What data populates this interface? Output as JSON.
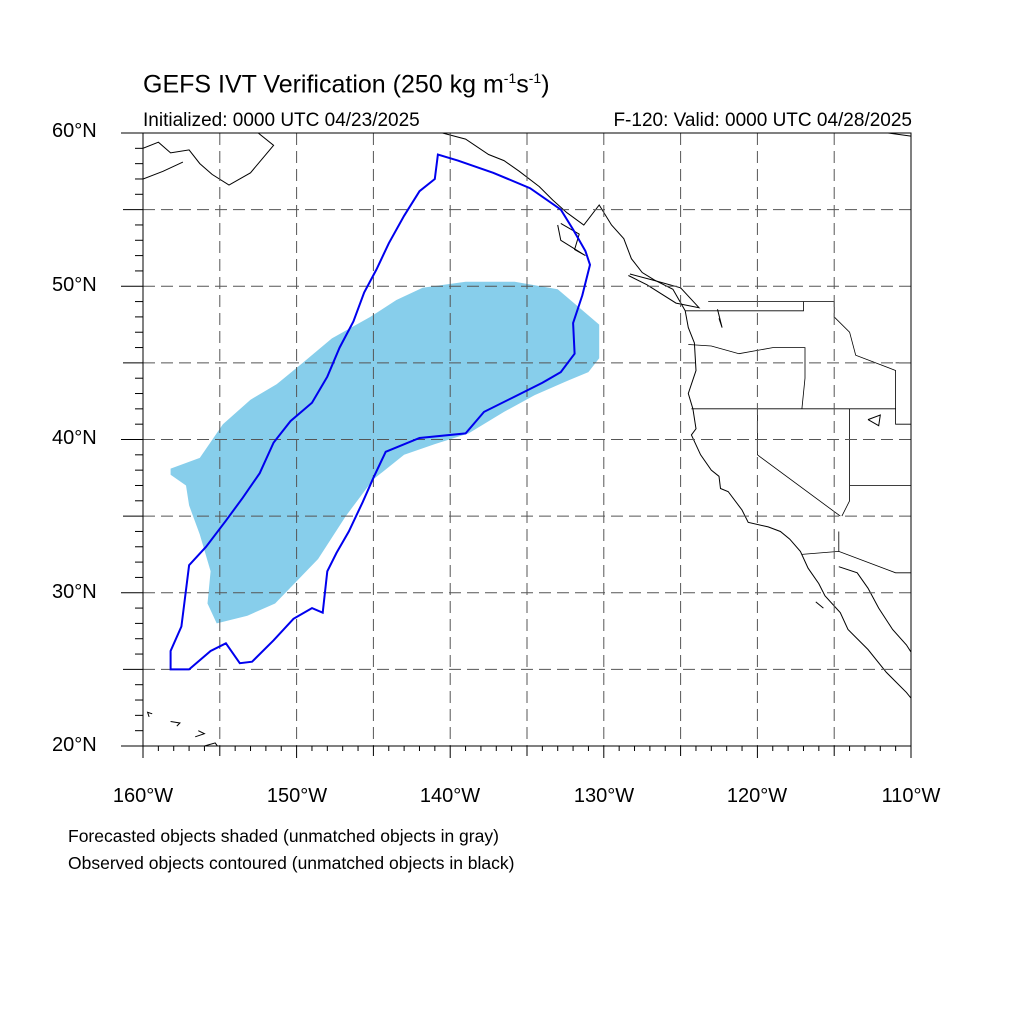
{
  "title": {
    "text": "GEFS IVT Verification (250 kg m",
    "exp1": "-1",
    "mid": "s",
    "exp2": "-1",
    "end": ")"
  },
  "subtitle": {
    "left": "Initialized: 0000 UTC 04/23/2025",
    "right": "F-120: Valid: 0000 UTC 04/28/2025"
  },
  "axes": {
    "lat_labels": [
      "60°N",
      "50°N",
      "40°N",
      "30°N",
      "20°N"
    ],
    "lon_labels": [
      "160°W",
      "150°W",
      "140°W",
      "130°W",
      "120°W",
      "110°W"
    ],
    "lat_range": [
      20,
      60
    ],
    "lon_range": [
      -160,
      -110
    ],
    "grid": true
  },
  "legend_notes": [
    "Forecasted objects shaded (unmatched objects in gray)",
    "Observed objects contoured (unmatched objects in black)"
  ],
  "colors": {
    "forecast_fill": "#87ceeb",
    "observed_contour": "#0000ee",
    "coastline": "#000000",
    "grid": "#555555"
  },
  "forecast_object_outline": [
    [
      -158.2,
      38.1
    ],
    [
      -156.3,
      38.8
    ],
    [
      -154.8,
      41.0
    ],
    [
      -153.0,
      42.6
    ],
    [
      -151.3,
      43.6
    ],
    [
      -149.6,
      45.0
    ],
    [
      -147.7,
      46.6
    ],
    [
      -145.2,
      48.0
    ],
    [
      -143.5,
      49.1
    ],
    [
      -141.8,
      49.9
    ],
    [
      -139.0,
      50.3
    ],
    [
      -135.8,
      50.3
    ],
    [
      -133.0,
      49.8
    ],
    [
      -131.7,
      48.7
    ],
    [
      -130.3,
      47.5
    ],
    [
      -130.3,
      45.3
    ],
    [
      -131.0,
      44.4
    ],
    [
      -132.2,
      43.9
    ],
    [
      -134.5,
      42.9
    ],
    [
      -136.5,
      41.8
    ],
    [
      -138.8,
      40.4
    ],
    [
      -141.0,
      39.7
    ],
    [
      -143.0,
      39.0
    ],
    [
      -145.0,
      37.4
    ],
    [
      -146.8,
      35.0
    ],
    [
      -148.6,
      32.2
    ],
    [
      -151.4,
      29.3
    ],
    [
      -153.2,
      28.5
    ],
    [
      -155.2,
      28.0
    ],
    [
      -155.8,
      29.3
    ],
    [
      -155.6,
      31.4
    ],
    [
      -156.3,
      33.8
    ],
    [
      -157.0,
      35.7
    ],
    [
      -157.2,
      37.0
    ],
    [
      -158.2,
      37.7
    ]
  ],
  "observed_object_outline": [
    [
      -158.2,
      25.0
    ],
    [
      -157.0,
      25.0
    ],
    [
      -155.6,
      26.2
    ],
    [
      -154.6,
      26.7
    ],
    [
      -153.7,
      25.4
    ],
    [
      -152.9,
      25.5
    ],
    [
      -151.5,
      26.9
    ],
    [
      -150.2,
      28.3
    ],
    [
      -149.0,
      29.0
    ],
    [
      -148.3,
      28.7
    ],
    [
      -148.0,
      31.4
    ],
    [
      -147.4,
      32.6
    ],
    [
      -146.6,
      34.0
    ],
    [
      -145.7,
      35.9
    ],
    [
      -145.0,
      37.5
    ],
    [
      -144.2,
      39.2
    ],
    [
      -142.0,
      40.1
    ],
    [
      -139.0,
      40.4
    ],
    [
      -137.8,
      41.8
    ],
    [
      -135.8,
      42.8
    ],
    [
      -134.0,
      43.7
    ],
    [
      -132.8,
      44.4
    ],
    [
      -131.9,
      45.6
    ],
    [
      -132.0,
      47.6
    ],
    [
      -131.4,
      49.4
    ],
    [
      -130.9,
      51.4
    ],
    [
      -131.2,
      52.3
    ],
    [
      -132.0,
      53.7
    ],
    [
      -132.8,
      55.0
    ],
    [
      -134.8,
      56.4
    ],
    [
      -137.2,
      57.4
    ],
    [
      -139.5,
      58.2
    ],
    [
      -140.8,
      58.6
    ],
    [
      -141.0,
      57.0
    ],
    [
      -142.0,
      56.2
    ],
    [
      -143.0,
      54.6
    ],
    [
      -144.0,
      52.8
    ],
    [
      -144.8,
      51.1
    ],
    [
      -145.6,
      49.6
    ],
    [
      -146.3,
      47.7
    ],
    [
      -147.2,
      46.0
    ],
    [
      -148.0,
      44.1
    ],
    [
      -149.0,
      42.4
    ],
    [
      -150.4,
      41.2
    ],
    [
      -151.5,
      39.8
    ],
    [
      -152.4,
      37.8
    ],
    [
      -153.5,
      36.2
    ],
    [
      -154.6,
      34.7
    ],
    [
      -155.9,
      33.0
    ],
    [
      -157.0,
      31.8
    ],
    [
      -157.3,
      29.4
    ],
    [
      -157.5,
      27.8
    ],
    [
      -158.2,
      26.2
    ]
  ],
  "states": [
    [
      [
        -124.7,
        48.4
      ],
      [
        -117.0,
        48.4
      ],
      [
        -117.0,
        49.0
      ],
      [
        -123.2,
        49.0
      ]
    ],
    [
      [
        -124.5,
        46.2
      ],
      [
        -123.0,
        46.1
      ],
      [
        -121.2,
        45.6
      ],
      [
        -119.0,
        46.0
      ],
      [
        -116.9,
        46.0
      ],
      [
        -116.9,
        44.0
      ],
      [
        -117.1,
        42.0
      ]
    ],
    [
      [
        -124.3,
        42.0
      ],
      [
        -117.1,
        42.0
      ],
      [
        -111.0,
        42.0
      ],
      [
        -111.0,
        41.0
      ],
      [
        -109.0,
        41.0
      ]
    ],
    [
      [
        -117.0,
        49.0
      ],
      [
        -115.0,
        49.0
      ],
      [
        -115.0,
        48.0
      ],
      [
        -114.0,
        47.0
      ],
      [
        -113.6,
        45.5
      ],
      [
        -111.0,
        44.5
      ],
      [
        -111.0,
        42.0
      ]
    ],
    [
      [
        -114.0,
        42.0
      ],
      [
        -114.0,
        36.0
      ],
      [
        -114.5,
        35.0
      ]
    ],
    [
      [
        -120.0,
        42.0
      ],
      [
        -120.0,
        39.0
      ],
      [
        -114.6,
        35.0
      ]
    ],
    [
      [
        -117.1,
        32.5
      ],
      [
        -114.7,
        32.7
      ],
      [
        -111.0,
        31.3
      ],
      [
        -109.0,
        31.3
      ]
    ],
    [
      [
        -114.7,
        32.7
      ],
      [
        -114.7,
        34.0
      ]
    ],
    [
      [
        -109.0,
        31.3
      ],
      [
        -109.0,
        37.0
      ],
      [
        -114.0,
        37.0
      ]
    ],
    [
      [
        -111.0,
        45.0
      ],
      [
        -109.0,
        45.0
      ]
    ]
  ],
  "coastlines": [
    [
      [
        -160.0,
        59.0
      ],
      [
        -159.0,
        59.4
      ],
      [
        -158.2,
        58.7
      ],
      [
        -157.0,
        58.9
      ],
      [
        -156.3,
        58.0
      ],
      [
        -155.5,
        57.3
      ],
      [
        -154.4,
        56.6
      ],
      [
        -153.0,
        57.4
      ],
      [
        -151.5,
        59.2
      ],
      [
        -152.5,
        60.0
      ]
    ],
    [
      [
        -160.0,
        57.0
      ],
      [
        -158.7,
        57.5
      ],
      [
        -157.4,
        58.1
      ]
    ],
    [
      [
        -140.5,
        60.0
      ],
      [
        -139.0,
        59.6
      ],
      [
        -137.5,
        58.6
      ],
      [
        -136.5,
        58.2
      ],
      [
        -135.5,
        57.5
      ],
      [
        -134.2,
        56.5
      ],
      [
        -133.3,
        55.6
      ],
      [
        -132.4,
        54.8
      ],
      [
        -131.3,
        54.0
      ],
      [
        -130.3,
        55.3
      ],
      [
        -129.5,
        54.0
      ],
      [
        -128.7,
        53.1
      ],
      [
        -128.2,
        51.8
      ],
      [
        -127.5,
        50.9
      ],
      [
        -126.7,
        50.4
      ],
      [
        -125.5,
        49.8
      ],
      [
        -124.7,
        48.4
      ]
    ],
    [
      [
        -132.8,
        54.1
      ],
      [
        -131.6,
        53.4
      ],
      [
        -131.9,
        52.4
      ],
      [
        -131.2,
        52.0
      ],
      [
        -132.8,
        53.0
      ],
      [
        -133.0,
        54.0
      ]
    ],
    [
      [
        -128.3,
        50.8
      ],
      [
        -126.8,
        50.4
      ],
      [
        -125.0,
        49.9
      ],
      [
        -123.8,
        48.6
      ],
      [
        -125.3,
        48.9
      ],
      [
        -127.2,
        50.1
      ],
      [
        -128.4,
        50.7
      ]
    ],
    [
      [
        -124.7,
        48.4
      ],
      [
        -124.5,
        47.3
      ],
      [
        -124.1,
        46.3
      ],
      [
        -124.0,
        44.5
      ],
      [
        -124.5,
        43.0
      ],
      [
        -124.2,
        42.0
      ],
      [
        -124.0,
        40.7
      ],
      [
        -124.3,
        40.3
      ],
      [
        -123.7,
        39.0
      ],
      [
        -123.0,
        38.0
      ],
      [
        -122.5,
        37.6
      ],
      [
        -122.4,
        36.8
      ],
      [
        -121.9,
        36.6
      ],
      [
        -121.0,
        35.4
      ],
      [
        -120.6,
        34.6
      ],
      [
        -119.3,
        34.3
      ],
      [
        -118.5,
        34.0
      ],
      [
        -117.9,
        33.5
      ],
      [
        -117.2,
        32.7
      ],
      [
        -116.7,
        31.6
      ],
      [
        -116.0,
        30.6
      ],
      [
        -115.6,
        29.8
      ],
      [
        -114.6,
        28.7
      ],
      [
        -114.1,
        27.6
      ],
      [
        -112.8,
        26.3
      ],
      [
        -111.6,
        24.8
      ],
      [
        -110.3,
        23.5
      ],
      [
        -109.9,
        23.0
      ]
    ],
    [
      [
        -114.7,
        31.7
      ],
      [
        -113.5,
        31.3
      ],
      [
        -112.8,
        30.3
      ],
      [
        -112.1,
        29.0
      ],
      [
        -111.2,
        27.6
      ],
      [
        -110.3,
        26.6
      ],
      [
        -109.4,
        25.2
      ],
      [
        -109.0,
        24.2
      ]
    ],
    [
      [
        -115.7,
        29.0
      ],
      [
        -116.2,
        29.4
      ]
    ],
    [
      [
        -122.5,
        47.9
      ],
      [
        -122.3,
        47.3
      ],
      [
        -122.6,
        48.5
      ]
    ],
    [
      [
        -112.8,
        41.3
      ],
      [
        -112.1,
        40.9
      ],
      [
        -112.0,
        41.6
      ],
      [
        -112.8,
        41.3
      ]
    ],
    [
      [
        -110.0,
        59.8
      ],
      [
        -111.5,
        60.0
      ]
    ],
    [
      [
        -154.8,
        19.5
      ],
      [
        -155.9,
        19.1
      ],
      [
        -156.0,
        20.0
      ],
      [
        -155.3,
        20.2
      ],
      [
        -154.8,
        19.5
      ]
    ],
    [
      [
        -156.6,
        20.6
      ],
      [
        -156.0,
        20.8
      ],
      [
        -156.4,
        21.0
      ]
    ],
    [
      [
        -157.8,
        21.3
      ],
      [
        -157.6,
        21.5
      ],
      [
        -158.2,
        21.6
      ]
    ],
    [
      [
        -159.4,
        22.1
      ],
      [
        -159.7,
        22.2
      ],
      [
        -159.6,
        21.9
      ]
    ]
  ]
}
